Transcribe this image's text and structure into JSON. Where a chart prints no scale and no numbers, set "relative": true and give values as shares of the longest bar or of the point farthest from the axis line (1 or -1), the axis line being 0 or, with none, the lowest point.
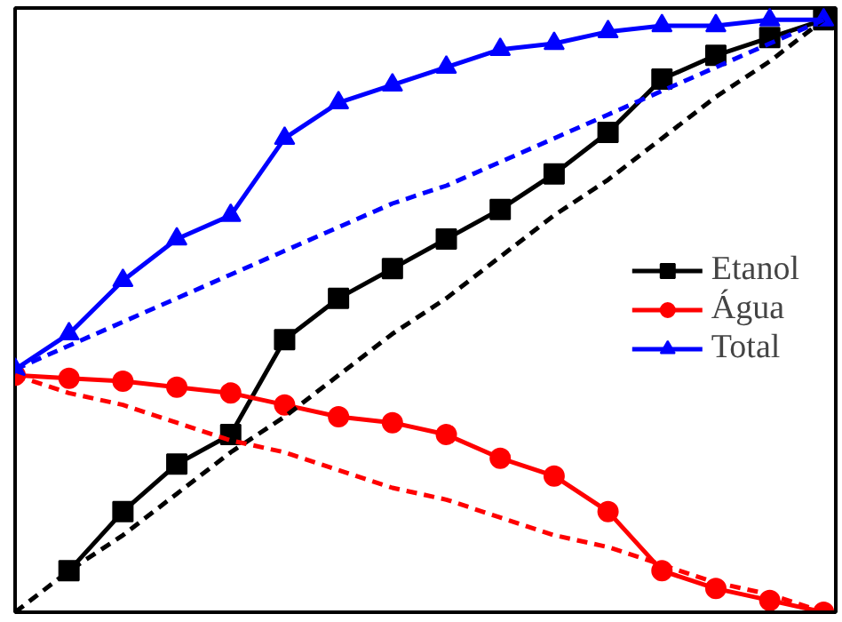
{
  "chart_data": {
    "type": "line",
    "relative": true,
    "categories": [
      null,
      null,
      null,
      null,
      null,
      null,
      null,
      null,
      null,
      null,
      null,
      null,
      null,
      null,
      null,
      null
    ],
    "legend": "right",
    "grid": false,
    "line_style": "solid",
    "series": [
      {
        "name": "Etanol",
        "color": "#000000",
        "marker": "square",
        "values": [
          null,
          0.07,
          0.17,
          0.25,
          0.3,
          0.46,
          0.53,
          0.58,
          0.63,
          0.68,
          0.74,
          0.81,
          0.9,
          0.94,
          0.97,
          1.0
        ]
      },
      {
        "name": "Água",
        "color": "#ff0000",
        "marker": "circle",
        "values": [
          0.4,
          0.395,
          0.39,
          0.38,
          0.37,
          0.35,
          0.33,
          0.32,
          0.3,
          0.26,
          0.23,
          0.17,
          0.07,
          0.04,
          0.02,
          0.0
        ]
      },
      {
        "name": "Total",
        "color": "#0000ff",
        "marker": "triangle",
        "values": [
          0.41,
          0.47,
          0.56,
          0.63,
          0.67,
          0.8,
          0.86,
          0.89,
          0.92,
          0.95,
          0.96,
          0.98,
          0.99,
          0.99,
          1.0,
          1.0
        ]
      },
      {
        "color": "#000000",
        "line_style": "dashed",
        "marker": "none",
        "values": [
          0.0,
          0.07,
          0.13,
          0.2,
          0.27,
          0.33,
          0.4,
          0.47,
          0.53,
          0.6,
          0.67,
          0.73,
          0.8,
          0.87,
          0.93,
          1.0
        ]
      },
      {
        "color": "#ff0000",
        "line_style": "dashed",
        "marker": "none",
        "values": [
          0.4,
          0.37,
          0.35,
          0.32,
          0.29,
          0.27,
          0.24,
          0.21,
          0.19,
          0.16,
          0.13,
          0.11,
          0.08,
          0.05,
          0.03,
          0.0
        ]
      },
      {
        "color": "#0000ff",
        "line_style": "dashed",
        "marker": "none",
        "values": [
          0.41,
          0.45,
          0.49,
          0.53,
          0.57,
          0.61,
          0.65,
          0.69,
          0.72,
          0.76,
          0.8,
          0.84,
          0.88,
          0.92,
          0.96,
          1.0
        ]
      }
    ]
  }
}
